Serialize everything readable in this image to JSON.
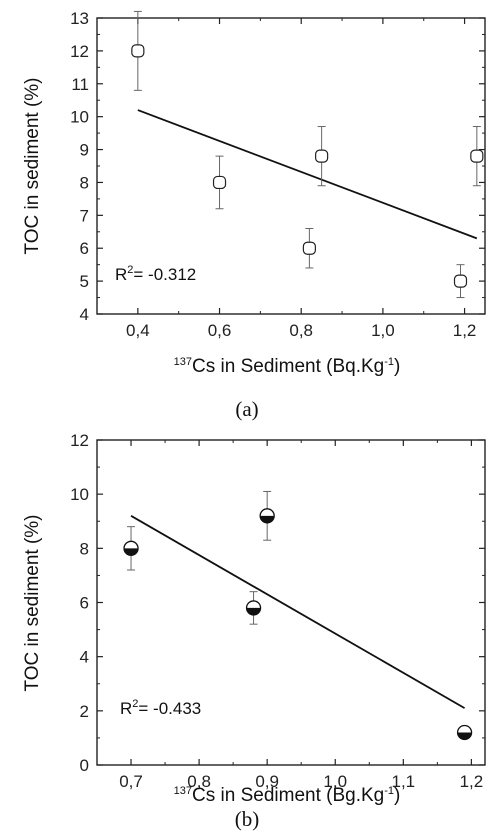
{
  "chart_data": [
    {
      "type": "scatter",
      "panel": "(a)",
      "xlabel_sup": "137",
      "xlabel_main": "Cs in Sediment (Bq.Kg",
      "xlabel_exp": "-1",
      "xlabel_end": ")",
      "ylabel": "TOC in sediment (%)",
      "xlim": [
        0.3,
        1.25
      ],
      "ylim": [
        4,
        13
      ],
      "x_ticks": [
        0.4,
        0.6,
        0.8,
        1.0,
        1.2
      ],
      "x_tick_labels": [
        "0,4",
        "0,6",
        "0,8",
        "1,0",
        "1,2"
      ],
      "y_ticks": [
        4,
        5,
        6,
        7,
        8,
        9,
        10,
        11,
        12,
        13
      ],
      "y_tick_labels": [
        "4",
        "5",
        "6",
        "7",
        "8",
        "9",
        "10",
        "11",
        "12",
        "13"
      ],
      "annotation_r2": "R",
      "annotation_r2_sup": "2",
      "annotation_r2_value": "= -0.312",
      "marker": "open-square-circle",
      "points": [
        {
          "x": 0.4,
          "y": 12.0,
          "err": 1.2
        },
        {
          "x": 0.6,
          "y": 8.0,
          "err": 0.8
        },
        {
          "x": 0.82,
          "y": 6.0,
          "err": 0.6
        },
        {
          "x": 0.85,
          "y": 8.8,
          "err": 0.9
        },
        {
          "x": 1.19,
          "y": 5.0,
          "err": 0.5
        },
        {
          "x": 1.23,
          "y": 8.8,
          "err": 0.9
        }
      ],
      "fit": {
        "x": [
          0.4,
          1.23
        ],
        "y": [
          10.2,
          6.3
        ]
      }
    },
    {
      "type": "scatter",
      "panel": "(b)",
      "xlabel_sup": "137",
      "xlabel_main": "Cs in Sediment (Bg.Kg",
      "xlabel_exp": "-1",
      "xlabel_end": ")",
      "ylabel": "TOC in sediment (%)",
      "xlim": [
        0.65,
        1.22
      ],
      "ylim": [
        0,
        12
      ],
      "x_ticks": [
        0.7,
        0.8,
        0.9,
        1.0,
        1.1,
        1.2
      ],
      "x_tick_labels": [
        "0,7",
        "0,8",
        "0,9",
        "1,0",
        "1,1",
        "1,2"
      ],
      "y_ticks": [
        0,
        2,
        4,
        6,
        8,
        10,
        12
      ],
      "y_tick_labels": [
        "0",
        "2",
        "4",
        "6",
        "8",
        "10",
        "12"
      ],
      "annotation_r2": "R",
      "annotation_r2_sup": "2",
      "annotation_r2_value": "= -0.433",
      "marker": "half-filled-circle",
      "points": [
        {
          "x": 0.7,
          "y": 8.0,
          "err": 0.8
        },
        {
          "x": 0.88,
          "y": 5.8,
          "err": 0.6
        },
        {
          "x": 0.9,
          "y": 9.2,
          "err": 0.9
        },
        {
          "x": 1.19,
          "y": 1.2,
          "err": 0.1
        }
      ],
      "fit": {
        "x": [
          0.7,
          1.19
        ],
        "y": [
          9.2,
          2.1
        ]
      }
    }
  ]
}
